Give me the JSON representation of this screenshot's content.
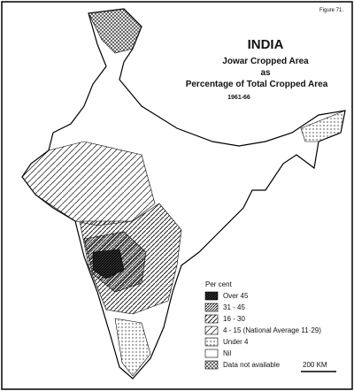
{
  "figure_label": "Figure 71.",
  "header": {
    "title": "INDIA",
    "subtitle_1": "Jowar Cropped Area",
    "subtitle_2": "as",
    "subtitle_3": "Percentage of Total Cropped Area",
    "period": "1961-66"
  },
  "legend": {
    "title": "Per cent",
    "items": [
      {
        "label": "Over 45"
      },
      {
        "label": "31 - 45"
      },
      {
        "label": "16 - 30"
      },
      {
        "label": "4 - 15 (National Average 11·29)"
      },
      {
        "label": "Under 4"
      },
      {
        "label": "Nil"
      },
      {
        "label": "Data not available"
      }
    ]
  },
  "scale": "200 KM"
}
